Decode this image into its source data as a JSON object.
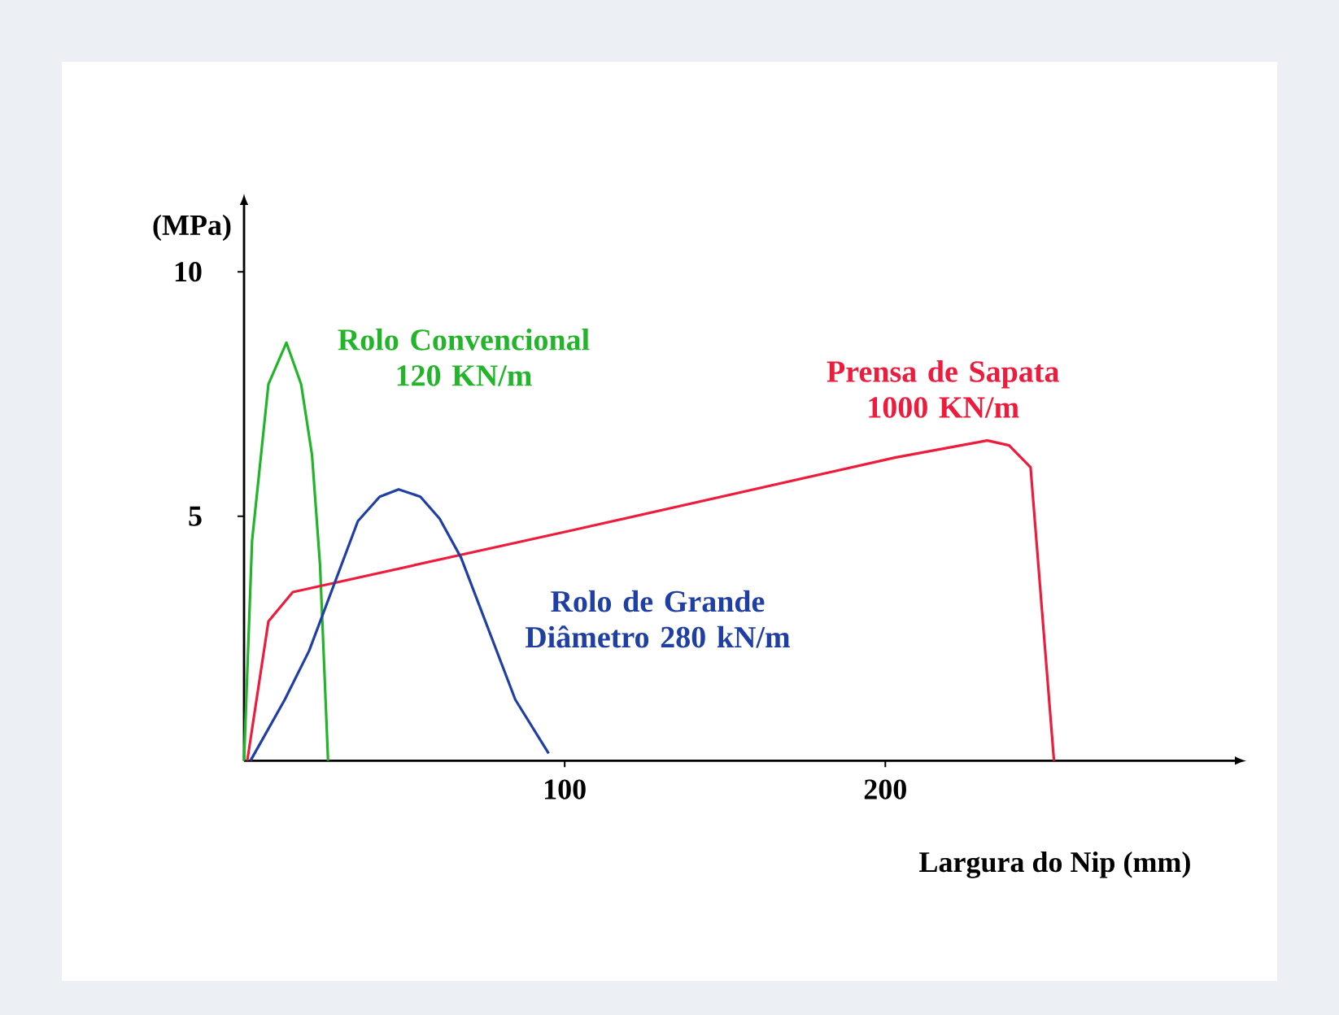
{
  "chart_data": {
    "type": "line",
    "xlabel": "Largura do Nip (mm)",
    "ylabel": "(MPa)",
    "xlim": [
      0,
      308
    ],
    "ylim": [
      0,
      11.3
    ],
    "xticks": [
      100,
      200
    ],
    "yticks": [
      5,
      10
    ],
    "marker": "none",
    "line_style": "solid",
    "series": [
      {
        "name": "Rolo Convencional 120 KN/m",
        "color": "#22b52a",
        "x": [
          0,
          2.5,
          7.6,
          13.2,
          17.8,
          21.2,
          23.7,
          26.2
        ],
        "values": [
          0,
          4.5,
          7.7,
          8.55,
          7.7,
          6.25,
          4.0,
          0
        ]
      },
      {
        "name": "Prensa de Sapata 1000 KN/m",
        "color": "#ee1c3c",
        "x": [
          1,
          7.6,
          15.2,
          101.5,
          203,
          231.8,
          238.6,
          245.3,
          252.6
        ],
        "values": [
          0,
          2.85,
          3.45,
          4.7,
          6.2,
          6.55,
          6.45,
          6.0,
          0
        ]
      },
      {
        "name": "Rolo de Grande Diâmetro 280 kN/m",
        "color": "#1f3fa5",
        "x": [
          2,
          12.7,
          20.3,
          35.5,
          42.3,
          48.2,
          55,
          61,
          67.7,
          84.6,
          95
        ],
        "values": [
          0,
          1.25,
          2.25,
          4.9,
          5.4,
          5.55,
          5.4,
          4.95,
          4.15,
          1.25,
          0.15
        ]
      }
    ]
  }
}
